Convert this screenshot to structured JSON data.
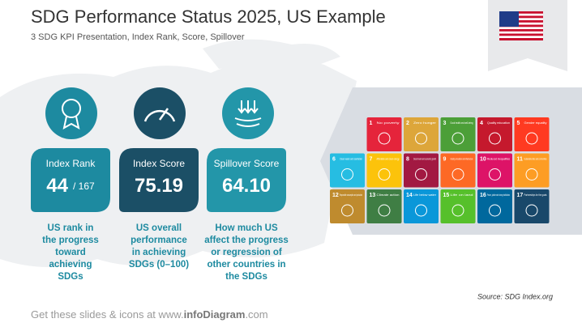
{
  "header": {
    "title": "SDG Performance Status 2025, US Example",
    "subtitle": "3 SDG KPI Presentation, Index Rank, Score, Spillover"
  },
  "cards": [
    {
      "title": "Index Rank",
      "value": "44",
      "suffix": "/ 167",
      "color": "#1d8aa0",
      "description": [
        "US rank in",
        "the progress",
        "toward",
        "achieving",
        "SDGs"
      ]
    },
    {
      "title": "Index Score",
      "value": "75.19",
      "suffix": null,
      "color": "#1b4f66",
      "description": [
        "US overall",
        "performance",
        "in achieving",
        "SDGs   (0–100)"
      ]
    },
    {
      "title": "Spillover Score",
      "value": "64.10",
      "suffix": null,
      "color": "#2396a9",
      "description": [
        "How much US",
        "affect the progress",
        "or regression of",
        "other countries in",
        "the SDGs"
      ]
    }
  ],
  "goals": [
    {
      "number": "1",
      "label": "No poverty",
      "color": "#e5243b"
    },
    {
      "number": "2",
      "label": "Zero hunger",
      "color": "#dda63a"
    },
    {
      "number": "3",
      "label": "Good health and well-being",
      "color": "#4c9f38"
    },
    {
      "number": "4",
      "label": "Quality education",
      "color": "#c5192d"
    },
    {
      "number": "5",
      "label": "Gender equality",
      "color": "#ff3a21"
    },
    {
      "number": "6",
      "label": "Clean water and sanitation",
      "color": "#26bde2"
    },
    {
      "number": "7",
      "label": "Affordable and clean energy",
      "color": "#fcc30b"
    },
    {
      "number": "8",
      "label": "Decent work and economic growth",
      "color": "#a21942"
    },
    {
      "number": "9",
      "label": "Industry, innovation and infrastructure",
      "color": "#fd6925"
    },
    {
      "number": "10",
      "label": "Reduced inequalities",
      "color": "#dd1367"
    },
    {
      "number": "11",
      "label": "Sustainable cities and communities",
      "color": "#fd9d24"
    },
    {
      "number": "12",
      "label": "Responsible consumption and production",
      "color": "#bf8b2e"
    },
    {
      "number": "13",
      "label": "Climate action",
      "color": "#3f7e44"
    },
    {
      "number": "14",
      "label": "Life below water",
      "color": "#0a97d9"
    },
    {
      "number": "15",
      "label": "Life on land",
      "color": "#56c02b"
    },
    {
      "number": "16",
      "label": "Peace, justice and strong institutions",
      "color": "#00689d"
    },
    {
      "number": "17",
      "label": "Partnerships for the goals",
      "color": "#19486a"
    }
  ],
  "source": "Source: SDG Index.org",
  "footer": {
    "prefix": "Get these slides & icons at www.",
    "brand": "infoDiagram",
    "suffix": ".com"
  }
}
